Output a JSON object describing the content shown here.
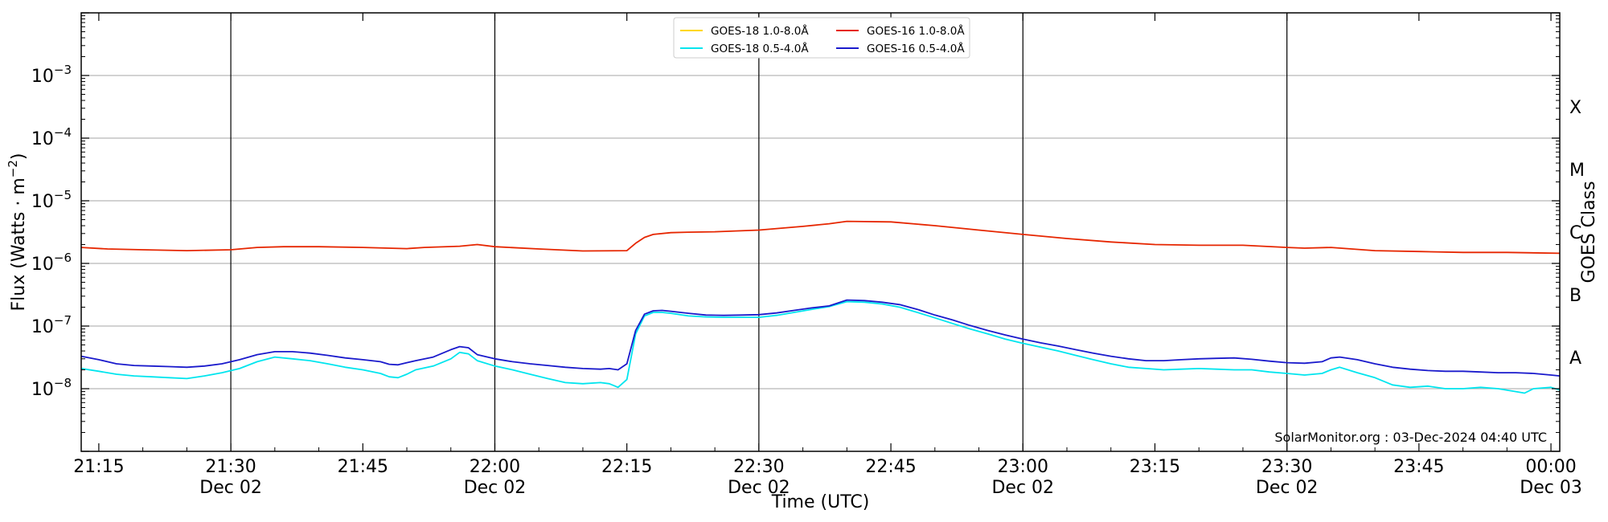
{
  "chart_data": {
    "type": "line",
    "xlabel": "Time (UTC)",
    "ylabel_prefix": "Flux (Watts · m",
    "ylabel_sup": "−2",
    "ylabel_suffix": ")",
    "y2label": "GOES Class",
    "credit": "SolarMonitor.org : 03-Dec-2024 04:40 UTC",
    "xlim_minutes": [
      1273,
      1441
    ],
    "y_scale": "log",
    "ylim_exp": [
      -9,
      -2
    ],
    "x_ticks": [
      {
        "t": 1275,
        "time": "21:15",
        "date": ""
      },
      {
        "t": 1290,
        "time": "21:30",
        "date": "Dec 02"
      },
      {
        "t": 1305,
        "time": "21:45",
        "date": ""
      },
      {
        "t": 1320,
        "time": "22:00",
        "date": "Dec 02"
      },
      {
        "t": 1335,
        "time": "22:15",
        "date": ""
      },
      {
        "t": 1350,
        "time": "22:30",
        "date": "Dec 02"
      },
      {
        "t": 1365,
        "time": "22:45",
        "date": ""
      },
      {
        "t": 1380,
        "time": "23:00",
        "date": "Dec 02"
      },
      {
        "t": 1395,
        "time": "23:15",
        "date": ""
      },
      {
        "t": 1410,
        "time": "23:30",
        "date": "Dec 02"
      },
      {
        "t": 1425,
        "time": "23:45",
        "date": ""
      },
      {
        "t": 1440,
        "time": "00:00",
        "date": "Dec 03"
      }
    ],
    "x_vertical_lines": [
      1290,
      1320,
      1350,
      1380,
      1410
    ],
    "y_ticks": [
      {
        "exp": -8,
        "base": "10",
        "power": "−8"
      },
      {
        "exp": -7,
        "base": "10",
        "power": "−7"
      },
      {
        "exp": -6,
        "base": "10",
        "power": "−6"
      },
      {
        "exp": -5,
        "base": "10",
        "power": "−5"
      },
      {
        "exp": -4,
        "base": "10",
        "power": "−4"
      },
      {
        "exp": -3,
        "base": "10",
        "power": "−3"
      }
    ],
    "class_labels": [
      {
        "label": "A",
        "exp": -7.5
      },
      {
        "label": "B",
        "exp": -6.5
      },
      {
        "label": "C",
        "exp": -5.5
      },
      {
        "label": "M",
        "exp": -4.5
      },
      {
        "label": "X",
        "exp": -3.5
      }
    ],
    "legend": [
      {
        "name": "GOES-18 1.0-8.0Å",
        "color": "#ffd700"
      },
      {
        "name": "GOES-16 1.0-8.0Å",
        "color": "#e62600"
      },
      {
        "name": "GOES-18 0.5-4.0Å",
        "color": "#00e5ee"
      },
      {
        "name": "GOES-16 0.5-4.0Å",
        "color": "#1a1acc"
      }
    ],
    "series": [
      {
        "name": "GOES-16 1.0-8.0Å",
        "color": "#e62600",
        "x": [
          1273,
          1276,
          1280,
          1285,
          1290,
          1293,
          1296,
          1300,
          1305,
          1310,
          1312,
          1316,
          1318,
          1320,
          1325,
          1330,
          1335,
          1336,
          1337,
          1338,
          1340,
          1342,
          1345,
          1350,
          1355,
          1358,
          1360,
          1365,
          1370,
          1375,
          1380,
          1385,
          1390,
          1395,
          1400,
          1405,
          1410,
          1412,
          1415,
          1420,
          1425,
          1430,
          1435,
          1441
        ],
        "y": [
          1.8e-06,
          1.7e-06,
          1.65e-06,
          1.6e-06,
          1.65e-06,
          1.8e-06,
          1.85e-06,
          1.85e-06,
          1.8e-06,
          1.72e-06,
          1.8e-06,
          1.88e-06,
          2e-06,
          1.85e-06,
          1.7e-06,
          1.58e-06,
          1.6e-06,
          2.1e-06,
          2.6e-06,
          2.9e-06,
          3.1e-06,
          3.15e-06,
          3.2e-06,
          3.4e-06,
          3.9e-06,
          4.3e-06,
          4.7e-06,
          4.6e-06,
          4e-06,
          3.4e-06,
          2.9e-06,
          2.5e-06,
          2.2e-06,
          2e-06,
          1.95e-06,
          1.95e-06,
          1.8e-06,
          1.75e-06,
          1.8e-06,
          1.6e-06,
          1.55e-06,
          1.5e-06,
          1.5e-06,
          1.45e-06
        ]
      },
      {
        "name": "GOES-18 0.5-4.0Å",
        "color": "#00e5ee",
        "x": [
          1273,
          1275,
          1277,
          1279,
          1281,
          1283,
          1285,
          1287,
          1289,
          1291,
          1293,
          1295,
          1297,
          1299,
          1301,
          1303,
          1305,
          1307,
          1308,
          1309,
          1310,
          1311,
          1313,
          1315,
          1316,
          1317,
          1318,
          1320,
          1322,
          1324,
          1326,
          1328,
          1330,
          1332,
          1333,
          1334,
          1335,
          1336,
          1337,
          1338,
          1339,
          1340,
          1342,
          1344,
          1346,
          1348,
          1350,
          1352,
          1354,
          1356,
          1358,
          1360,
          1362,
          1364,
          1366,
          1368,
          1370,
          1372,
          1374,
          1376,
          1378,
          1380,
          1382,
          1384,
          1386,
          1388,
          1390,
          1392,
          1394,
          1396,
          1398,
          1400,
          1402,
          1404,
          1406,
          1408,
          1410,
          1412,
          1414,
          1415,
          1416,
          1418,
          1420,
          1422,
          1424,
          1426,
          1428,
          1430,
          1432,
          1434,
          1436,
          1437,
          1438,
          1440,
          1441
        ],
        "y": [
          2.1e-08,
          1.9e-08,
          1.7e-08,
          1.6e-08,
          1.55e-08,
          1.5e-08,
          1.45e-08,
          1.6e-08,
          1.8e-08,
          2.1e-08,
          2.7e-08,
          3.2e-08,
          3e-08,
          2.8e-08,
          2.5e-08,
          2.2e-08,
          2e-08,
          1.75e-08,
          1.55e-08,
          1.5e-08,
          1.7e-08,
          2e-08,
          2.3e-08,
          3e-08,
          3.8e-08,
          3.6e-08,
          2.8e-08,
          2.3e-08,
          2e-08,
          1.7e-08,
          1.45e-08,
          1.25e-08,
          1.2e-08,
          1.25e-08,
          1.2e-08,
          1.05e-08,
          1.4e-08,
          7.5e-08,
          1.45e-07,
          1.65e-07,
          1.65e-07,
          1.6e-07,
          1.45e-07,
          1.4e-07,
          1.38e-07,
          1.38e-07,
          1.38e-07,
          1.48e-07,
          1.65e-07,
          1.85e-07,
          2.05e-07,
          2.45e-07,
          2.4e-07,
          2.25e-07,
          2e-07,
          1.65e-07,
          1.35e-07,
          1.1e-07,
          9e-08,
          7.5e-08,
          6.2e-08,
          5.3e-08,
          4.6e-08,
          4e-08,
          3.4e-08,
          2.9e-08,
          2.5e-08,
          2.2e-08,
          2.1e-08,
          2e-08,
          2.05e-08,
          2.1e-08,
          2.05e-08,
          2e-08,
          2e-08,
          1.85e-08,
          1.75e-08,
          1.65e-08,
          1.75e-08,
          2e-08,
          2.2e-08,
          1.8e-08,
          1.5e-08,
          1.15e-08,
          1.05e-08,
          1.1e-08,
          1e-08,
          1e-08,
          1.05e-08,
          1e-08,
          9e-09,
          8.5e-09,
          1e-08,
          1.05e-08,
          9.5e-09
        ]
      },
      {
        "name": "GOES-16 0.5-4.0Å",
        "color": "#1a1acc",
        "x": [
          1273,
          1275,
          1277,
          1279,
          1281,
          1283,
          1285,
          1287,
          1289,
          1291,
          1293,
          1295,
          1297,
          1299,
          1301,
          1303,
          1305,
          1307,
          1308,
          1309,
          1310,
          1311,
          1313,
          1315,
          1316,
          1317,
          1318,
          1320,
          1322,
          1324,
          1326,
          1328,
          1330,
          1332,
          1333,
          1334,
          1335,
          1336,
          1337,
          1338,
          1339,
          1340,
          1342,
          1344,
          1346,
          1348,
          1350,
          1352,
          1354,
          1356,
          1358,
          1360,
          1362,
          1364,
          1366,
          1368,
          1370,
          1372,
          1374,
          1376,
          1378,
          1380,
          1382,
          1384,
          1386,
          1388,
          1390,
          1392,
          1394,
          1396,
          1398,
          1400,
          1402,
          1404,
          1406,
          1408,
          1410,
          1412,
          1414,
          1415,
          1416,
          1418,
          1420,
          1422,
          1424,
          1426,
          1428,
          1430,
          1432,
          1434,
          1436,
          1438,
          1440,
          1441
        ],
        "y": [
          3.3e-08,
          2.9e-08,
          2.5e-08,
          2.35e-08,
          2.3e-08,
          2.25e-08,
          2.2e-08,
          2.3e-08,
          2.5e-08,
          2.9e-08,
          3.5e-08,
          3.9e-08,
          3.9e-08,
          3.7e-08,
          3.4e-08,
          3.1e-08,
          2.9e-08,
          2.7e-08,
          2.45e-08,
          2.4e-08,
          2.6e-08,
          2.8e-08,
          3.2e-08,
          4.2e-08,
          4.7e-08,
          4.5e-08,
          3.5e-08,
          3e-08,
          2.7e-08,
          2.5e-08,
          2.35e-08,
          2.2e-08,
          2.1e-08,
          2.05e-08,
          2.1e-08,
          2e-08,
          2.5e-08,
          8.5e-08,
          1.55e-07,
          1.75e-07,
          1.78e-07,
          1.72e-07,
          1.6e-07,
          1.5e-07,
          1.48e-07,
          1.5e-07,
          1.52e-07,
          1.62e-07,
          1.78e-07,
          1.95e-07,
          2.1e-07,
          2.6e-07,
          2.55e-07,
          2.4e-07,
          2.2e-07,
          1.85e-07,
          1.5e-07,
          1.25e-07,
          1.02e-07,
          8.5e-08,
          7.2e-08,
          6.2e-08,
          5.4e-08,
          4.8e-08,
          4.2e-08,
          3.7e-08,
          3.3e-08,
          3e-08,
          2.8e-08,
          2.8e-08,
          2.9e-08,
          3e-08,
          3.05e-08,
          3.1e-08,
          2.95e-08,
          2.75e-08,
          2.6e-08,
          2.55e-08,
          2.7e-08,
          3.1e-08,
          3.2e-08,
          2.9e-08,
          2.5e-08,
          2.2e-08,
          2.05e-08,
          1.95e-08,
          1.9e-08,
          1.9e-08,
          1.85e-08,
          1.8e-08,
          1.8e-08,
          1.75e-08,
          1.65e-08,
          1.6e-08
        ]
      }
    ]
  }
}
